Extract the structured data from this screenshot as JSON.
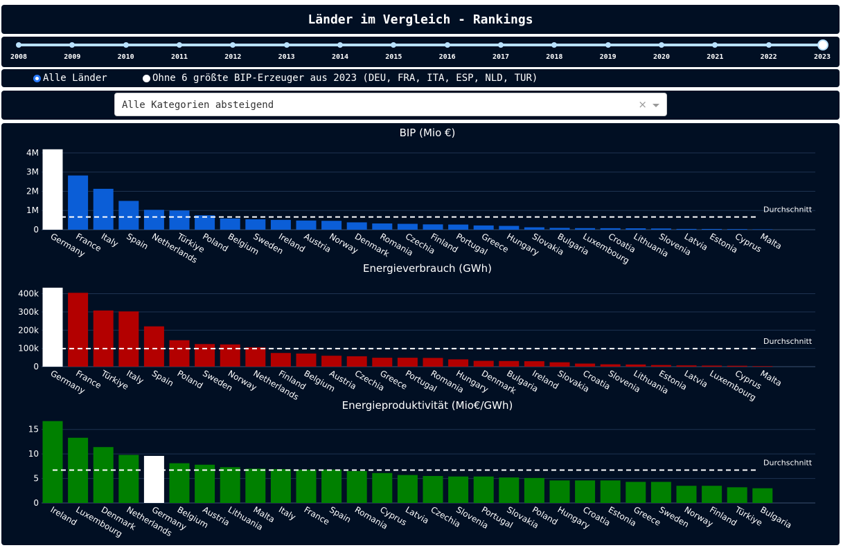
{
  "header": {
    "title": "Länder im Vergleich - Rankings"
  },
  "slider": {
    "years": [
      "2008",
      "2009",
      "2010",
      "2011",
      "2012",
      "2013",
      "2014",
      "2015",
      "2016",
      "2017",
      "2018",
      "2019",
      "2020",
      "2021",
      "2022",
      "2023"
    ],
    "selected": "2023"
  },
  "radio": {
    "options": [
      "Alle Länder",
      "Ohne 6 größte BIP-Erzeuger aus 2023 (DEU, FRA, ITA, ESP, NLD, TUR)"
    ],
    "selected_index": 0
  },
  "dropdown": {
    "value": "Alle Kategorien absteigend",
    "clear_symbol": "×"
  },
  "colors": {
    "background": "#010f23",
    "gridline": "#1e3352",
    "highlight": "#ffffff",
    "average_line": "#ffffff"
  },
  "chart_data": [
    {
      "type": "bar",
      "title": "BIP (Mio €)",
      "color": "#0b5ed7",
      "highlight": "Germany",
      "average_label": "Durchschnitt",
      "average": 660000,
      "ylim": [
        0,
        4250000
      ],
      "y_ticks": [
        0,
        1000000,
        2000000,
        3000000,
        4000000
      ],
      "y_tick_labels": [
        "0",
        "1M",
        "2M",
        "3M",
        "4M"
      ],
      "categories": [
        "Germany",
        "France",
        "Italy",
        "Spain",
        "Netherlands",
        "Türkiye",
        "Poland",
        "Belgium",
        "Sweden",
        "Ireland",
        "Austria",
        "Norway",
        "Denmark",
        "Romania",
        "Czechia",
        "Finland",
        "Portugal",
        "Greece",
        "Hungary",
        "Slovakia",
        "Bulgaria",
        "Luxembourg",
        "Croatia",
        "Lithuania",
        "Slovenia",
        "Latvia",
        "Estonia",
        "Cyprus",
        "Malta"
      ],
      "values": [
        4185000,
        2822000,
        2128000,
        1498000,
        1034000,
        1000000,
        750000,
        584000,
        540000,
        510000,
        477000,
        460000,
        381000,
        324000,
        305000,
        277000,
        267000,
        220000,
        197000,
        124000,
        94000,
        81000,
        77000,
        72000,
        63000,
        40000,
        38000,
        31000,
        20000
      ]
    },
    {
      "type": "bar",
      "title": "Energieverbrauch (GWh)",
      "color": "#b30000",
      "highlight": "Germany",
      "average_label": "Durchschnitt",
      "average": 99000,
      "ylim": [
        0,
        440000
      ],
      "y_ticks": [
        0,
        100000,
        200000,
        300000,
        400000
      ],
      "y_tick_labels": [
        "0",
        "100k",
        "200k",
        "300k",
        "400k"
      ],
      "categories": [
        "Germany",
        "France",
        "Türkiye",
        "Italy",
        "Spain",
        "Poland",
        "Sweden",
        "Norway",
        "Netherlands",
        "Finland",
        "Belgium",
        "Austria",
        "Czechia",
        "Greece",
        "Portugal",
        "Romania",
        "Hungary",
        "Denmark",
        "Bulgaria",
        "Ireland",
        "Slovakia",
        "Croatia",
        "Slovenia",
        "Lithuania",
        "Estonia",
        "Latvia",
        "Luxembourg",
        "Cyprus",
        "Malta"
      ],
      "values": [
        433000,
        405000,
        308000,
        303000,
        221000,
        145000,
        124000,
        122000,
        106000,
        75000,
        72000,
        60000,
        57000,
        49000,
        49000,
        48000,
        40000,
        32000,
        31000,
        30000,
        24000,
        17000,
        13000,
        12000,
        9000,
        7000,
        6000,
        5000,
        3000
      ]
    },
    {
      "type": "bar",
      "title": "Energieproduktivität (Mio€/GWh)",
      "color": "#008000",
      "highlight": "Germany",
      "average_label": "Durchschnitt",
      "average": 6.7,
      "ylim": [
        0,
        17.5
      ],
      "y_ticks": [
        0,
        5,
        10,
        15
      ],
      "y_tick_labels": [
        "0",
        "5",
        "10",
        "15"
      ],
      "categories": [
        "Ireland",
        "Luxembourg",
        "Denmark",
        "Netherlands",
        "Germany",
        "Belgium",
        "Austria",
        "Lithuania",
        "Malta",
        "Italy",
        "France",
        "Spain",
        "Romania",
        "Cyprus",
        "Latvia",
        "Czechia",
        "Slovenia",
        "Portugal",
        "Slovakia",
        "Poland",
        "Hungary",
        "Croatia",
        "Estonia",
        "Greece",
        "Sweden",
        "Norway",
        "Finland",
        "Türkiye",
        "Bulgaria"
      ],
      "values": [
        16.7,
        13.3,
        11.4,
        9.8,
        9.6,
        8.1,
        7.8,
        7.3,
        7.0,
        6.9,
        6.8,
        6.8,
        6.5,
        6.1,
        5.7,
        5.5,
        5.4,
        5.4,
        5.2,
        5.1,
        4.6,
        4.6,
        4.6,
        4.3,
        4.3,
        3.5,
        3.5,
        3.2,
        3.0
      ]
    }
  ]
}
